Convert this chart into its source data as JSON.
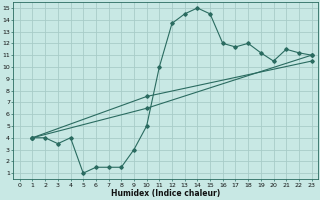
{
  "xlabel": "Humidex (Indice chaleur)",
  "background_color": "#c8e8e4",
  "grid_color": "#a8ccc8",
  "line_color": "#2a6b60",
  "xlim": [
    -0.5,
    23.5
  ],
  "ylim": [
    0.5,
    15.5
  ],
  "xticks": [
    0,
    1,
    2,
    3,
    4,
    5,
    6,
    7,
    8,
    9,
    10,
    11,
    12,
    13,
    14,
    15,
    16,
    17,
    18,
    19,
    20,
    21,
    22,
    23
  ],
  "yticks": [
    1,
    2,
    3,
    4,
    5,
    6,
    7,
    8,
    9,
    10,
    11,
    12,
    13,
    14,
    15
  ],
  "s1x": [
    1,
    2,
    3,
    4,
    5,
    6,
    7,
    8,
    9,
    10,
    11,
    12,
    13,
    14,
    15,
    16,
    17,
    18,
    19,
    20,
    21,
    22,
    23
  ],
  "s1y": [
    4,
    4,
    3.5,
    4,
    1,
    1.5,
    1.5,
    1.5,
    3,
    5,
    10,
    13.7,
    14.5,
    15,
    14.5,
    12,
    11.7,
    12,
    11.2,
    10.5,
    11.5,
    11.2,
    11
  ],
  "s2x": [
    1,
    10,
    23
  ],
  "s2y": [
    4,
    6.5,
    11
  ],
  "s3x": [
    1,
    10,
    23
  ],
  "s3y": [
    4,
    7.5,
    10.5
  ]
}
